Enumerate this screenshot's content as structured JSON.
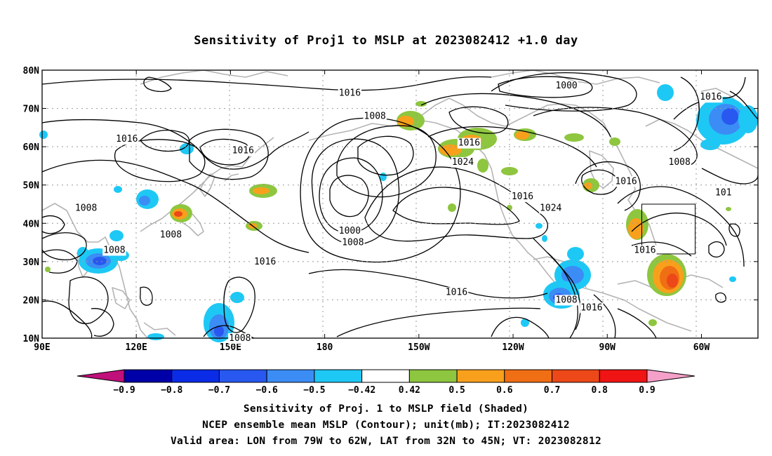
{
  "title": "Sensitivity of Proj1 to MSLP at 2023082412 +1.0 day",
  "map": {
    "lon_labels": [
      "90E",
      "120E",
      "150E",
      "180",
      "150W",
      "120W",
      "90W",
      "60W"
    ],
    "lat_labels": [
      "80N",
      "70N",
      "60N",
      "50N",
      "40N",
      "30N",
      "20N",
      "10N"
    ],
    "contour_labels": [
      {
        "text": "1016",
        "lon": 188,
        "lat": 74
      },
      {
        "text": "1016",
        "lon": 117,
        "lat": 62
      },
      {
        "text": "1016",
        "lon": 154,
        "lat": 59
      },
      {
        "text": "1008",
        "lon": 104,
        "lat": 44
      },
      {
        "text": "1008",
        "lon": 113,
        "lat": 33
      },
      {
        "text": "1008",
        "lon": 131,
        "lat": 37
      },
      {
        "text": "1016",
        "lon": 161,
        "lat": 30
      },
      {
        "text": "1008",
        "lon": 196,
        "lat": 68
      },
      {
        "text": "1016",
        "lon": 226,
        "lat": 61
      },
      {
        "text": "1024",
        "lon": 224,
        "lat": 56
      },
      {
        "text": "1000",
        "lon": 188,
        "lat": 38
      },
      {
        "text": "1008",
        "lon": 189,
        "lat": 35
      },
      {
        "text": "1016",
        "lon": 222,
        "lat": 22
      },
      {
        "text": "1000",
        "lon": 257,
        "lat": 76
      },
      {
        "text": "1016",
        "lon": 303,
        "lat": 73
      },
      {
        "text": "1008",
        "lon": 293,
        "lat": 56
      },
      {
        "text": "1016",
        "lon": 276,
        "lat": 51
      },
      {
        "text": "1016",
        "lon": 243,
        "lat": 47
      },
      {
        "text": "1024",
        "lon": 252,
        "lat": 44
      },
      {
        "text": "1016",
        "lon": 282,
        "lat": 33
      },
      {
        "text": "1008",
        "lon": 257,
        "lat": 20
      },
      {
        "text": "1016",
        "lon": 265,
        "lat": 18
      },
      {
        "text": "1008",
        "lon": 153,
        "lat": 10
      },
      {
        "text": "101",
        "lon": 307,
        "lat": 48
      }
    ],
    "valid_box": {
      "lon_min": 281,
      "lon_max": 298,
      "lat_min": 32,
      "lat_max": 45
    }
  },
  "colorbar": {
    "labels": [
      "-0.9",
      "-0.8",
      "-0.7",
      "-0.6",
      "-0.5",
      "-0.42",
      "0.42",
      "0.5",
      "0.6",
      "0.7",
      "0.8",
      "0.9"
    ],
    "colors": [
      "#0000a8",
      "#0a2ce6",
      "#2858f0",
      "#3c8cf5",
      "#1ec8f5",
      "#ffffff",
      "#8ec63f",
      "#f8a01c",
      "#f06e14",
      "#ec4818",
      "#f01414"
    ],
    "low_end_color": "#c0107a",
    "high_end_color": "#f5a0c8"
  },
  "caption": {
    "line1": "Sensitivity of Proj. 1 to MSLP field (Shaded)",
    "line2": "NCEP ensemble mean MSLP (Contour); unit(mb); IT:2023082412",
    "line3": "Valid area: LON from 79W to 62W, LAT from 32N to 45N; VT: 2023082812"
  }
}
